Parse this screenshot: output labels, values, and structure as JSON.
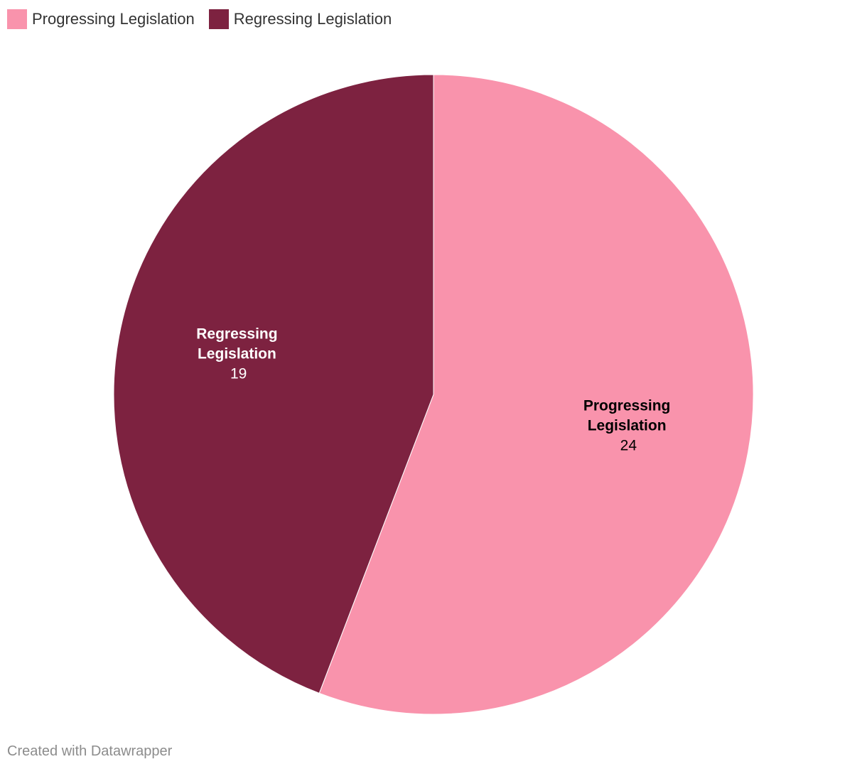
{
  "chart_data": {
    "type": "pie",
    "categories": [
      "Progressing Legislation",
      "Regressing Legislation"
    ],
    "values": [
      24,
      19
    ],
    "colors": [
      "#f993ac",
      "#7d2240"
    ],
    "label_colors": [
      "#000000",
      "#ffffff"
    ],
    "start_angle_deg": 0,
    "direction": "clockwise",
    "legend_position": "top-left"
  },
  "legend": {
    "items": [
      {
        "label": "Progressing Legislation",
        "color": "#f993ac"
      },
      {
        "label": "Regressing Legislation",
        "color": "#7d2240"
      }
    ]
  },
  "labels": {
    "slices": [
      {
        "name_line1": "Progressing",
        "name_line2": "Legislation",
        "value": "24"
      },
      {
        "name_line1": "Regressing",
        "name_line2": "Legislation",
        "value": "19"
      }
    ]
  },
  "footer": {
    "credit": "Created with Datawrapper"
  }
}
